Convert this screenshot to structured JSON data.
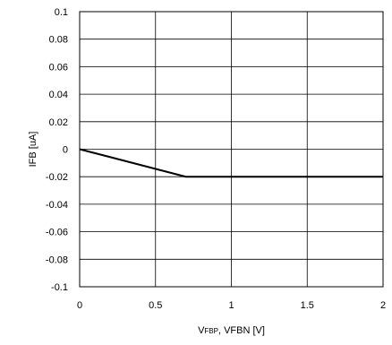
{
  "chart_data": {
    "type": "line",
    "title": "",
    "xlabel": "VFBP, VFBN [V]",
    "xlabel_parts": {
      "prefix": "V",
      "subscript": "FBP",
      "suffix": ", VFBN [V]"
    },
    "ylabel": "IFB [uA]",
    "xlim": [
      0,
      2
    ],
    "ylim": [
      -0.1,
      0.1
    ],
    "grid": true,
    "legend": "none",
    "x_ticks": [
      "0",
      "0.5",
      "1",
      "1.5",
      "2"
    ],
    "y_ticks": [
      "0.1",
      "0.08",
      "0.06",
      "0.04",
      "0.02",
      "0",
      "-0.02",
      "-0.04",
      "-0.06",
      "-0.08",
      "-0.1"
    ],
    "series": [
      {
        "x": [
          0,
          0.7,
          2
        ],
        "y": [
          0,
          -0.02,
          -0.02
        ],
        "color": "#000000"
      }
    ]
  }
}
